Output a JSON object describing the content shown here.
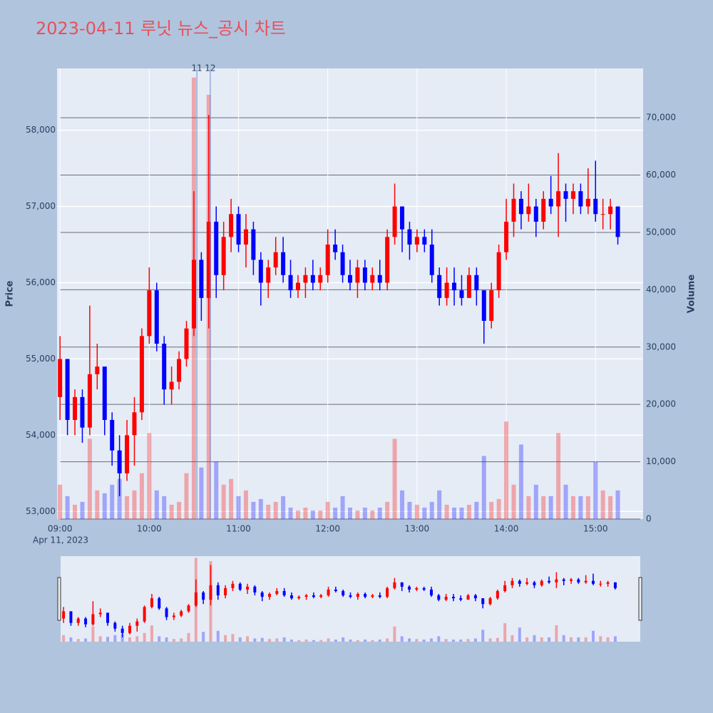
{
  "chart_data": {
    "type": "candlestick",
    "title": "2023-04-11 루닛 뉴스_공시 차트",
    "ylabel": "Price",
    "y2label": "Volume",
    "x_date_label": "Apr 11, 2023",
    "increasing_color": "#ff0000",
    "decreasing_color": "#0000ff",
    "grid": true,
    "rangeslider": true,
    "xlim": [
      "08:58",
      "15:32"
    ],
    "xticks": [
      "09:00",
      "10:00",
      "11:00",
      "12:00",
      "13:00",
      "14:00",
      "15:00"
    ],
    "ylim": [
      52900,
      58810
    ],
    "yticks": [
      {
        "value": 53000,
        "label": "53,000"
      },
      {
        "value": 54000,
        "label": "54,000"
      },
      {
        "value": 55000,
        "label": "55,000"
      },
      {
        "value": 56000,
        "label": "56,000"
      },
      {
        "value": 57000,
        "label": "57,000"
      },
      {
        "value": 58000,
        "label": "58,000"
      }
    ],
    "y2lim": [
      0,
      78600
    ],
    "y2ticks": [
      0,
      {
        "value": 10000,
        "label": "10,000"
      },
      {
        "value": 20000,
        "label": "20,000"
      },
      {
        "value": 30000,
        "label": "30,000"
      },
      {
        "value": 40000,
        "label": "40,000"
      },
      {
        "value": 50000,
        "label": "50,000"
      },
      {
        "value": 60000,
        "label": "60,000"
      },
      {
        "value": 70000,
        "label": "70,000"
      }
    ],
    "annotations": [
      {
        "x": "10:32",
        "text": "11"
      },
      {
        "x": "10:41",
        "text": "12"
      }
    ],
    "x": [
      "09:00",
      "09:05",
      "09:10",
      "09:15",
      "09:20",
      "09:25",
      "09:30",
      "09:35",
      "09:40",
      "09:45",
      "09:50",
      "09:55",
      "10:00",
      "10:05",
      "10:10",
      "10:15",
      "10:20",
      "10:25",
      "10:30",
      "10:35",
      "10:40",
      "10:45",
      "10:50",
      "10:55",
      "11:00",
      "11:05",
      "11:10",
      "11:15",
      "11:20",
      "11:25",
      "11:30",
      "11:35",
      "11:40",
      "11:45",
      "11:50",
      "11:55",
      "12:00",
      "12:05",
      "12:10",
      "12:15",
      "12:20",
      "12:25",
      "12:30",
      "12:35",
      "12:40",
      "12:45",
      "12:50",
      "12:55",
      "13:00",
      "13:05",
      "13:10",
      "13:15",
      "13:20",
      "13:25",
      "13:30",
      "13:35",
      "13:40",
      "13:45",
      "13:50",
      "13:55",
      "14:00",
      "14:05",
      "14:10",
      "14:15",
      "14:20",
      "14:25",
      "14:30",
      "14:35",
      "14:40",
      "14:45",
      "14:50",
      "14:55",
      "15:00",
      "15:05",
      "15:10",
      "15:15"
    ],
    "open": [
      54500,
      55000,
      54200,
      54500,
      54100,
      54800,
      54900,
      54200,
      53800,
      53500,
      54000,
      54300,
      55300,
      55900,
      55200,
      54600,
      54700,
      55000,
      55400,
      56300,
      55800,
      56800,
      56100,
      56600,
      56900,
      56500,
      56700,
      56300,
      56000,
      56200,
      56400,
      56100,
      55900,
      56000,
      56100,
      56000,
      56100,
      56500,
      56400,
      56100,
      56000,
      56200,
      56000,
      56100,
      56000,
      56600,
      57000,
      56700,
      56500,
      56600,
      56500,
      56100,
      55800,
      56000,
      55900,
      55800,
      56100,
      55900,
      55500,
      55900,
      56400,
      56800,
      57100,
      56900,
      57000,
      56800,
      57100,
      57000,
      57200,
      57100,
      57200,
      57000,
      57100,
      56900,
      56900,
      57000
    ],
    "high": [
      55300,
      55000,
      54600,
      54600,
      55700,
      55200,
      54900,
      54300,
      54000,
      54200,
      54500,
      55400,
      56200,
      56000,
      55300,
      54900,
      55100,
      55500,
      57200,
      56400,
      58200,
      57000,
      56800,
      57100,
      57000,
      56900,
      56800,
      56400,
      56300,
      56600,
      56600,
      56300,
      56100,
      56200,
      56300,
      56200,
      56700,
      56700,
      56500,
      56300,
      56300,
      56300,
      56200,
      56300,
      56700,
      57300,
      57000,
      56800,
      56700,
      56700,
      56700,
      56200,
      56200,
      56200,
      56100,
      56200,
      56200,
      55900,
      56000,
      56500,
      57100,
      57300,
      57200,
      57300,
      57100,
      57200,
      57400,
      57700,
      57300,
      57300,
      57300,
      57500,
      57600,
      57100,
      57100,
      57000
    ],
    "low": [
      54200,
      54000,
      54000,
      53900,
      54000,
      54600,
      54000,
      53600,
      53200,
      53400,
      53600,
      54200,
      55200,
      55100,
      54400,
      54400,
      54600,
      54900,
      55300,
      55500,
      55400,
      55800,
      55900,
      56400,
      56400,
      56200,
      56100,
      55700,
      55800,
      56100,
      56000,
      55800,
      55800,
      55800,
      55900,
      55900,
      56000,
      56300,
      56000,
      55900,
      55800,
      55900,
      55900,
      55900,
      55900,
      56500,
      56400,
      56300,
      56400,
      56400,
      56000,
      55700,
      55700,
      55700,
      55700,
      55800,
      55700,
      55200,
      55400,
      55800,
      56300,
      56600,
      56700,
      56800,
      56600,
      56700,
      56900,
      56600,
      56800,
      56900,
      56900,
      56900,
      56800,
      56700,
      56700,
      56500
    ],
    "close": [
      55000,
      54200,
      54500,
      54100,
      54800,
      54900,
      54200,
      53800,
      53500,
      54000,
      54300,
      55300,
      55900,
      55200,
      54600,
      54700,
      55000,
      55400,
      56300,
      55800,
      56800,
      56100,
      56600,
      56900,
      56500,
      56700,
      56300,
      56000,
      56200,
      56400,
      56100,
      55900,
      56000,
      56100,
      56000,
      56100,
      56500,
      56400,
      56100,
      56000,
      56200,
      56000,
      56100,
      56000,
      56600,
      57000,
      56700,
      56500,
      56600,
      56500,
      56100,
      55800,
      56000,
      55900,
      55800,
      56100,
      55900,
      55500,
      55900,
      56400,
      56800,
      57100,
      56900,
      57000,
      56800,
      57100,
      57000,
      57200,
      57100,
      57200,
      57000,
      57100,
      56900,
      56900,
      57000,
      56600
    ],
    "volume": [
      6000,
      4000,
      2500,
      3000,
      14000,
      5000,
      4500,
      6000,
      7000,
      4000,
      5000,
      8000,
      15000,
      5000,
      4000,
      2500,
      3000,
      8000,
      77000,
      9000,
      74000,
      10000,
      6000,
      7000,
      4000,
      5000,
      3000,
      3500,
      2500,
      3000,
      4000,
      2000,
      1500,
      2000,
      1500,
      1500,
      3000,
      2000,
      4000,
      2000,
      1500,
      2000,
      1500,
      2000,
      3000,
      14000,
      5000,
      3000,
      2500,
      2000,
      3000,
      5000,
      2500,
      2000,
      2000,
      2500,
      3000,
      11000,
      3000,
      3500,
      17000,
      6000,
      13000,
      4000,
      6000,
      4000,
      4000,
      15000,
      6000,
      4000,
      4000,
      4000,
      10000,
      5000,
      4000,
      5000
    ]
  }
}
